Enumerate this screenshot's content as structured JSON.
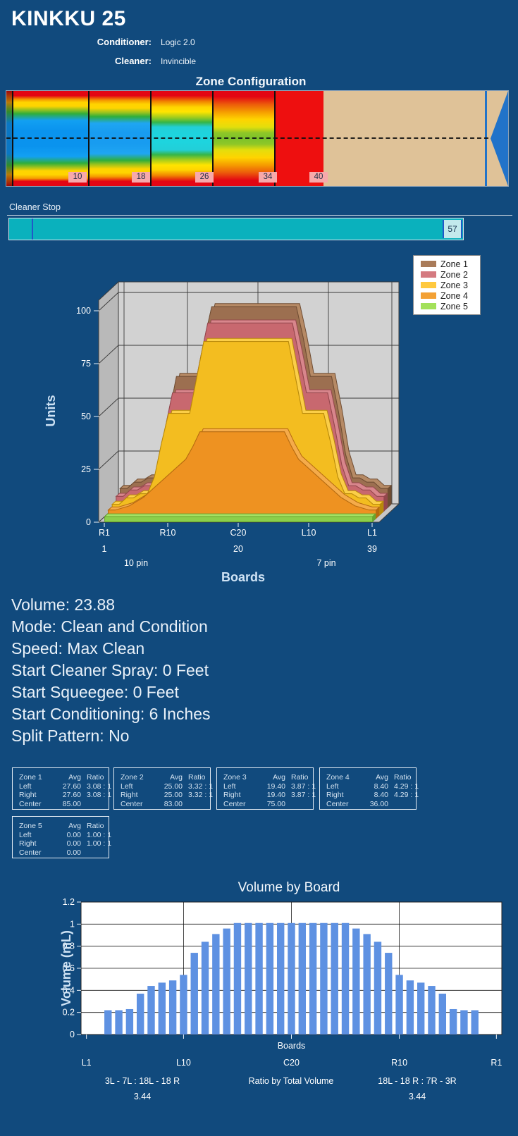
{
  "header": {
    "title": "KINKKU 25",
    "conditioner_label": "Conditioner:",
    "conditioner_value": "Logic 2.0",
    "cleaner_label": "Cleaner:",
    "cleaner_value": "Invincible"
  },
  "zone_configuration": {
    "title": "Zone Configuration",
    "zone_boundary_labels": [
      "10",
      "18",
      "26",
      "34",
      "40"
    ]
  },
  "cleaner_stop": {
    "label": "Cleaner Stop",
    "value": "57"
  },
  "settings_lines": [
    "Volume: 23.88",
    "Mode: Clean and Condition",
    "Speed: Max Clean",
    "Start Cleaner Spray: 0 Feet",
    "Start Squeegee: 0 Feet",
    "Start Conditioning: 6 Inches",
    "Split Pattern: No"
  ],
  "zone_tables": [
    {
      "name": "Zone 1",
      "avg_header": "Avg",
      "ratio_header": "Ratio",
      "rows": [
        [
          "Left",
          "27.60",
          "3.08 : 1"
        ],
        [
          "Right",
          "27.60",
          "3.08 : 1"
        ],
        [
          "Center",
          "85.00",
          ""
        ]
      ]
    },
    {
      "name": "Zone 2",
      "avg_header": "Avg",
      "ratio_header": "Ratio",
      "rows": [
        [
          "Left",
          "25.00",
          "3.32 : 1"
        ],
        [
          "Right",
          "25.00",
          "3.32 : 1"
        ],
        [
          "Center",
          "83.00",
          ""
        ]
      ]
    },
    {
      "name": "Zone 3",
      "avg_header": "Avg",
      "ratio_header": "Ratio",
      "rows": [
        [
          "Left",
          "19.40",
          "3.87 : 1"
        ],
        [
          "Right",
          "19.40",
          "3.87 : 1"
        ],
        [
          "Center",
          "75.00",
          ""
        ]
      ]
    },
    {
      "name": "Zone 4",
      "avg_header": "Avg",
      "ratio_header": "Ratio",
      "rows": [
        [
          "Left",
          "8.40",
          "4.29 : 1"
        ],
        [
          "Right",
          "8.40",
          "4.29 : 1"
        ],
        [
          "Center",
          "36.00",
          ""
        ]
      ]
    },
    {
      "name": "Zone 5",
      "avg_header": "Avg",
      "ratio_header": "Ratio",
      "rows": [
        [
          "Left",
          "0.00",
          "1.00 : 1"
        ],
        [
          "Right",
          "0.00",
          "1.00 : 1"
        ],
        [
          "Center",
          "0.00",
          ""
        ]
      ]
    }
  ],
  "colors": {
    "background": "#114a7d",
    "light_text": "#e9f1f9",
    "axis_label_blue": "#cfe3f5",
    "heatmap_tan": "#dfc298",
    "arrow_blue": "#2173c9",
    "cleaner_teal": "#0ab1bd",
    "bar_blue": "#5e91e2"
  },
  "chart_data": [
    {
      "type": "area3d",
      "title": "",
      "ylabel": "Units",
      "xlabel": "Boards",
      "ylim": [
        0,
        100
      ],
      "yticks": [
        0,
        25,
        50,
        75,
        100
      ],
      "grid": true,
      "legend_position": "top-right",
      "x_board_labels": [
        {
          "label": "R1",
          "board": 1,
          "sub": "1"
        },
        {
          "label": "R10",
          "board": 10,
          "sub": ""
        },
        {
          "label": "C20",
          "board": 20,
          "sub": "20"
        },
        {
          "label": "L10",
          "board": 30,
          "sub": ""
        },
        {
          "label": "L1",
          "board": 39,
          "sub": "39"
        }
      ],
      "pin_labels": [
        {
          "text": "10 pin",
          "board": 5.5
        },
        {
          "text": "7 pin",
          "board": 32.5
        }
      ],
      "series": [
        {
          "name": "Zone 1",
          "color": "#9c6f50",
          "top_color": "#b68a65",
          "edge_color": "#6f4d33",
          "legend_color": "#a97b59",
          "values": [
            9,
            9,
            12,
            12,
            14,
            14,
            25,
            45,
            62,
            62,
            62,
            62,
            80,
            95,
            95,
            95,
            95,
            95,
            95,
            95,
            95,
            95,
            95,
            95,
            95,
            95,
            80,
            62,
            62,
            62,
            62,
            45,
            25,
            14,
            14,
            12,
            12,
            9,
            9
          ]
        },
        {
          "name": "Zone 2",
          "color": "#c8686f",
          "top_color": "#d8868c",
          "edge_color": "#94474d",
          "legend_color": "#d47a80",
          "values": [
            7,
            7,
            10,
            10,
            12,
            12,
            22,
            40,
            56,
            56,
            56,
            56,
            73,
            89,
            89,
            89,
            89,
            89,
            89,
            89,
            89,
            89,
            89,
            89,
            89,
            89,
            73,
            56,
            56,
            56,
            56,
            40,
            22,
            12,
            12,
            10,
            10,
            7,
            7
          ]
        },
        {
          "name": "Zone 3",
          "color": "#f3bd20",
          "top_color": "#fbce48",
          "edge_color": "#b8890a",
          "legend_color": "#ffc93f",
          "values": [
            5,
            5,
            8,
            8,
            10,
            10,
            18,
            34,
            48,
            48,
            48,
            48,
            65,
            82,
            82,
            82,
            82,
            82,
            82,
            82,
            82,
            82,
            82,
            82,
            82,
            82,
            65,
            48,
            48,
            48,
            48,
            34,
            18,
            10,
            10,
            8,
            8,
            5,
            5
          ]
        },
        {
          "name": "Zone 4",
          "color": "#ee9221",
          "top_color": "#f5ab4a",
          "edge_color": "#b56a10",
          "legend_color": "#f3a135",
          "values": [
            4,
            4,
            5,
            6,
            8,
            10,
            13,
            16,
            19,
            22,
            25,
            28,
            34,
            41,
            41,
            41,
            41,
            41,
            41,
            41,
            41,
            41,
            41,
            41,
            41,
            41,
            34,
            28,
            25,
            22,
            19,
            16,
            13,
            10,
            8,
            6,
            5,
            4,
            4
          ]
        },
        {
          "name": "Zone 5",
          "color": "#8ccf4b",
          "top_color": "#a5e164",
          "edge_color": "#67a52e",
          "legend_color": "#a3e15a",
          "values": [
            2.5,
            2.5,
            2.5,
            2.5,
            2.5,
            2.5,
            2.5,
            2.5,
            2.5,
            2.5,
            2.5,
            2.5,
            2.5,
            2.5,
            2.5,
            2.5,
            2.5,
            2.5,
            2.5,
            2.5,
            2.5,
            2.5,
            2.5,
            2.5,
            2.5,
            2.5,
            2.5,
            2.5,
            2.5,
            2.5,
            2.5,
            2.5,
            2.5,
            2.5,
            2.5,
            2.5,
            2.5,
            2.5,
            2.5
          ]
        }
      ]
    },
    {
      "type": "bar",
      "title": "Volume by Board",
      "ylabel": "Volume (mL)",
      "xlabel": "Boards",
      "ylim": [
        0,
        1.2
      ],
      "yticks": [
        "0",
        "0.2",
        "0.4",
        "0.6",
        "0.8",
        "1",
        "1.2"
      ],
      "grid_boards": [
        10,
        20,
        30
      ],
      "x_board_labels": [
        {
          "label": "L1",
          "board": 1
        },
        {
          "label": "L10",
          "board": 10
        },
        {
          "label": "C20",
          "board": 20
        },
        {
          "label": "R10",
          "board": 30
        },
        {
          "label": "R1",
          "board": 39
        }
      ],
      "values": [
        0,
        0,
        0.22,
        0.22,
        0.23,
        0.37,
        0.44,
        0.47,
        0.49,
        0.54,
        0.74,
        0.84,
        0.91,
        0.96,
        1.01,
        1.01,
        1.01,
        1.01,
        1.01,
        1.01,
        1.01,
        1.01,
        1.01,
        1.01,
        1.01,
        0.96,
        0.91,
        0.84,
        0.74,
        0.54,
        0.49,
        0.47,
        0.44,
        0.37,
        0.23,
        0.22,
        0.22,
        0,
        0
      ],
      "footnotes": {
        "left": [
          "3L - 7L : 18L - 18 R",
          "3.44"
        ],
        "center": [
          "Ratio by Total Volume"
        ],
        "right": [
          "18L - 18 R : 7R - 3R",
          "3.44"
        ]
      }
    }
  ]
}
